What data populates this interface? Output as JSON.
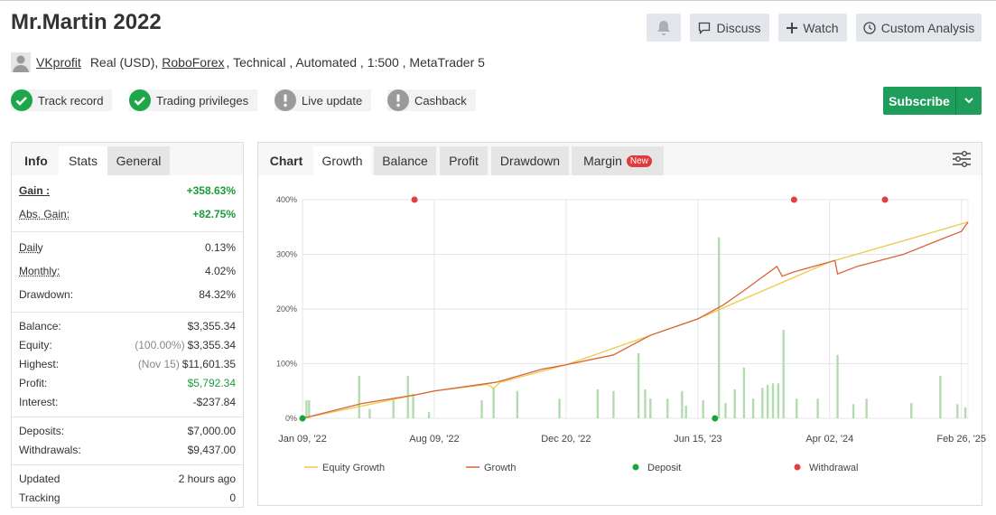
{
  "header": {
    "title": "Mr.Martin 2022",
    "buttons": [
      "Discuss",
      "Watch",
      "Custom Analysis"
    ],
    "author": "VKprofit",
    "account": "Real (USD),",
    "broker": "RoboForex",
    "details": ", Technical , Automated , 1:500 , MetaTrader 5"
  },
  "badges": [
    {
      "label": "Track record",
      "status": "ok"
    },
    {
      "label": "Trading privileges",
      "status": "ok"
    },
    {
      "label": "Live update",
      "status": "warn"
    },
    {
      "label": "Cashback",
      "status": "warn"
    }
  ],
  "subscribe": "Subscribe",
  "info_tabs": [
    "Info",
    "Stats",
    "General"
  ],
  "stats": [
    [
      {
        "label": "Gain :",
        "value": "+358.63%"
      },
      {
        "label": "Abs. Gain:",
        "value": "+82.75%"
      }
    ],
    [
      {
        "label": "Daily",
        "value": "0.13%"
      },
      {
        "label": "Monthly:",
        "value": "4.02%"
      },
      {
        "label": "Drawdown:",
        "value": "84.32%"
      }
    ],
    [
      {
        "label": "Balance:",
        "value": "$3,355.34"
      },
      {
        "label": "Equity:",
        "note": "(100.00%)",
        "value": "$3,355.34"
      },
      {
        "label": "Highest:",
        "note": "(Nov 15)",
        "value": "$11,601.35"
      },
      {
        "label": "Profit:",
        "value": "$5,792.34"
      },
      {
        "label": "Interest:",
        "value": "-$237.84"
      }
    ],
    [
      {
        "label": "Deposits:",
        "value": "$7,000.00"
      },
      {
        "label": "Withdrawals:",
        "value": "$9,437.00"
      }
    ],
    [
      {
        "label": "Updated",
        "value": "2 hours ago"
      },
      {
        "label": "Tracking",
        "value": "0"
      }
    ]
  ],
  "chart_tabs": [
    "Chart",
    "Growth",
    "Balance",
    "Profit",
    "Drawdown",
    "Margin"
  ],
  "new_badge": "New",
  "chart_data": {
    "type": "line",
    "series": [
      {
        "name": "Equity Growth",
        "color": "#f0c94a",
        "x": [
          0,
          100,
          140,
          145,
          150,
          200,
          300,
          400,
          505
        ],
        "values": [
          0,
          50,
          62,
          55,
          66,
          98,
          182,
          286,
          359
        ]
      },
      {
        "name": "Growth",
        "color": "#d9643a",
        "x": [
          0,
          45,
          86,
          100,
          147,
          182,
          200,
          236,
          264,
          300,
          319,
          334,
          360,
          364,
          373,
          400,
          404,
          406,
          421,
          456,
          483,
          500,
          505
        ],
        "values": [
          0,
          27,
          43,
          50,
          66,
          90,
          98,
          116,
          152,
          182,
          207,
          232,
          278,
          260,
          268,
          286,
          289,
          264,
          278,
          300,
          326,
          342,
          359
        ]
      },
      {
        "name": "Deposit",
        "color": "#1aa33a",
        "marker": "dot",
        "x": [
          0,
          313
        ],
        "values": [
          0,
          0
        ]
      },
      {
        "name": "Withdrawal",
        "color": "#e04040",
        "marker": "dot",
        "x": [
          85,
          373,
          442
        ],
        "values": [
          400,
          400,
          400
        ]
      }
    ],
    "bars": {
      "color": "#b3dcae",
      "x": [
        3,
        5,
        43,
        51,
        69,
        80,
        84,
        96,
        136,
        145,
        163,
        195,
        224,
        236,
        255,
        260,
        264,
        277,
        288,
        291,
        304,
        316,
        321,
        328,
        335,
        342,
        349,
        353,
        357,
        361,
        365,
        375,
        391,
        406,
        418,
        428,
        462,
        484,
        497,
        503
      ],
      "values": [
        33,
        33,
        78,
        17,
        33,
        78,
        45,
        12,
        33,
        56,
        50,
        36,
        53,
        50,
        119,
        53,
        36,
        36,
        50,
        23,
        33,
        331,
        28,
        53,
        93,
        36,
        56,
        61,
        64,
        64,
        162,
        36,
        36,
        116,
        26,
        36,
        28,
        78,
        26,
        20
      ]
    },
    "xlim": [
      0,
      505
    ],
    "xticks": [
      {
        "value": 0,
        "label": "Jan 09, '22"
      },
      {
        "value": 100,
        "label": "Aug 09, '22"
      },
      {
        "value": 200,
        "label": "Dec 20, '22"
      },
      {
        "value": 300,
        "label": "Jun 15, '23"
      },
      {
        "value": 400,
        "label": "Apr 02, '24"
      },
      {
        "value": 500,
        "label": "Feb 26, '25"
      }
    ],
    "ylim": [
      0,
      400
    ],
    "yticks": [
      {
        "value": 0,
        "label": "0%"
      },
      {
        "value": 100,
        "label": "100%"
      },
      {
        "value": 200,
        "label": "200%"
      },
      {
        "value": 300,
        "label": "300%"
      },
      {
        "value": 400,
        "label": "400%"
      }
    ],
    "grid": true
  }
}
